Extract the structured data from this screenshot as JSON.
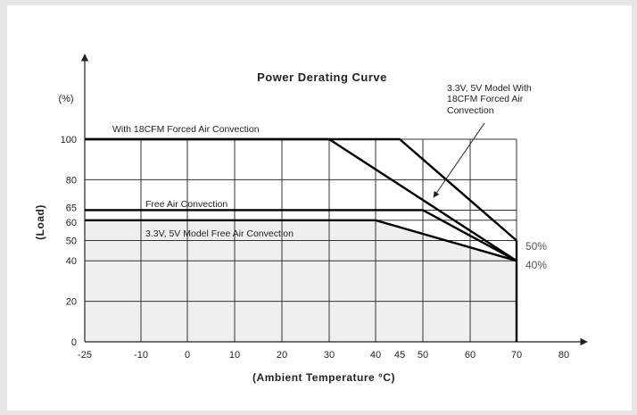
{
  "chart_data": {
    "type": "line",
    "title": "Power Derating Curve",
    "xlabel": "(Ambient Temperature °C)",
    "ylabel": "(Load)",
    "yunit": "(%)",
    "xticks": [
      -25,
      -10,
      0,
      10,
      20,
      30,
      40,
      45,
      50,
      60,
      70,
      80
    ],
    "yticks": [
      0,
      20,
      40,
      50,
      60,
      65,
      80,
      100
    ],
    "xlim": [
      -25,
      80
    ],
    "ylim": [
      0,
      100
    ],
    "grid": true,
    "series": [
      {
        "name": "With 18CFM Forced Air Convection",
        "x": [
          -25,
          30,
          70
        ],
        "y": [
          100,
          100,
          40
        ]
      },
      {
        "name": "3.3V, 5V Model With 18CFM Forced Air Convection",
        "x": [
          -25,
          45,
          70
        ],
        "y": [
          100,
          100,
          50
        ]
      },
      {
        "name": "Free Air Convection",
        "x": [
          -25,
          50,
          70
        ],
        "y": [
          65,
          65,
          40
        ]
      },
      {
        "name": "3.3V, 5V Model Free Air Convection",
        "x": [
          -25,
          40,
          70
        ],
        "y": [
          60,
          60,
          40
        ]
      }
    ],
    "annotations": [
      {
        "text": "3.3V, 5V Model With 18CFM Forced Air Convection",
        "lines": [
          "3.3V, 5V Model With",
          "18CFM Forced Air",
          "Convection"
        ]
      },
      {
        "text": "50%"
      },
      {
        "text": "40%"
      }
    ],
    "colors": {
      "line": "#000000",
      "shade": "#efefef",
      "grid": "#333333"
    }
  }
}
